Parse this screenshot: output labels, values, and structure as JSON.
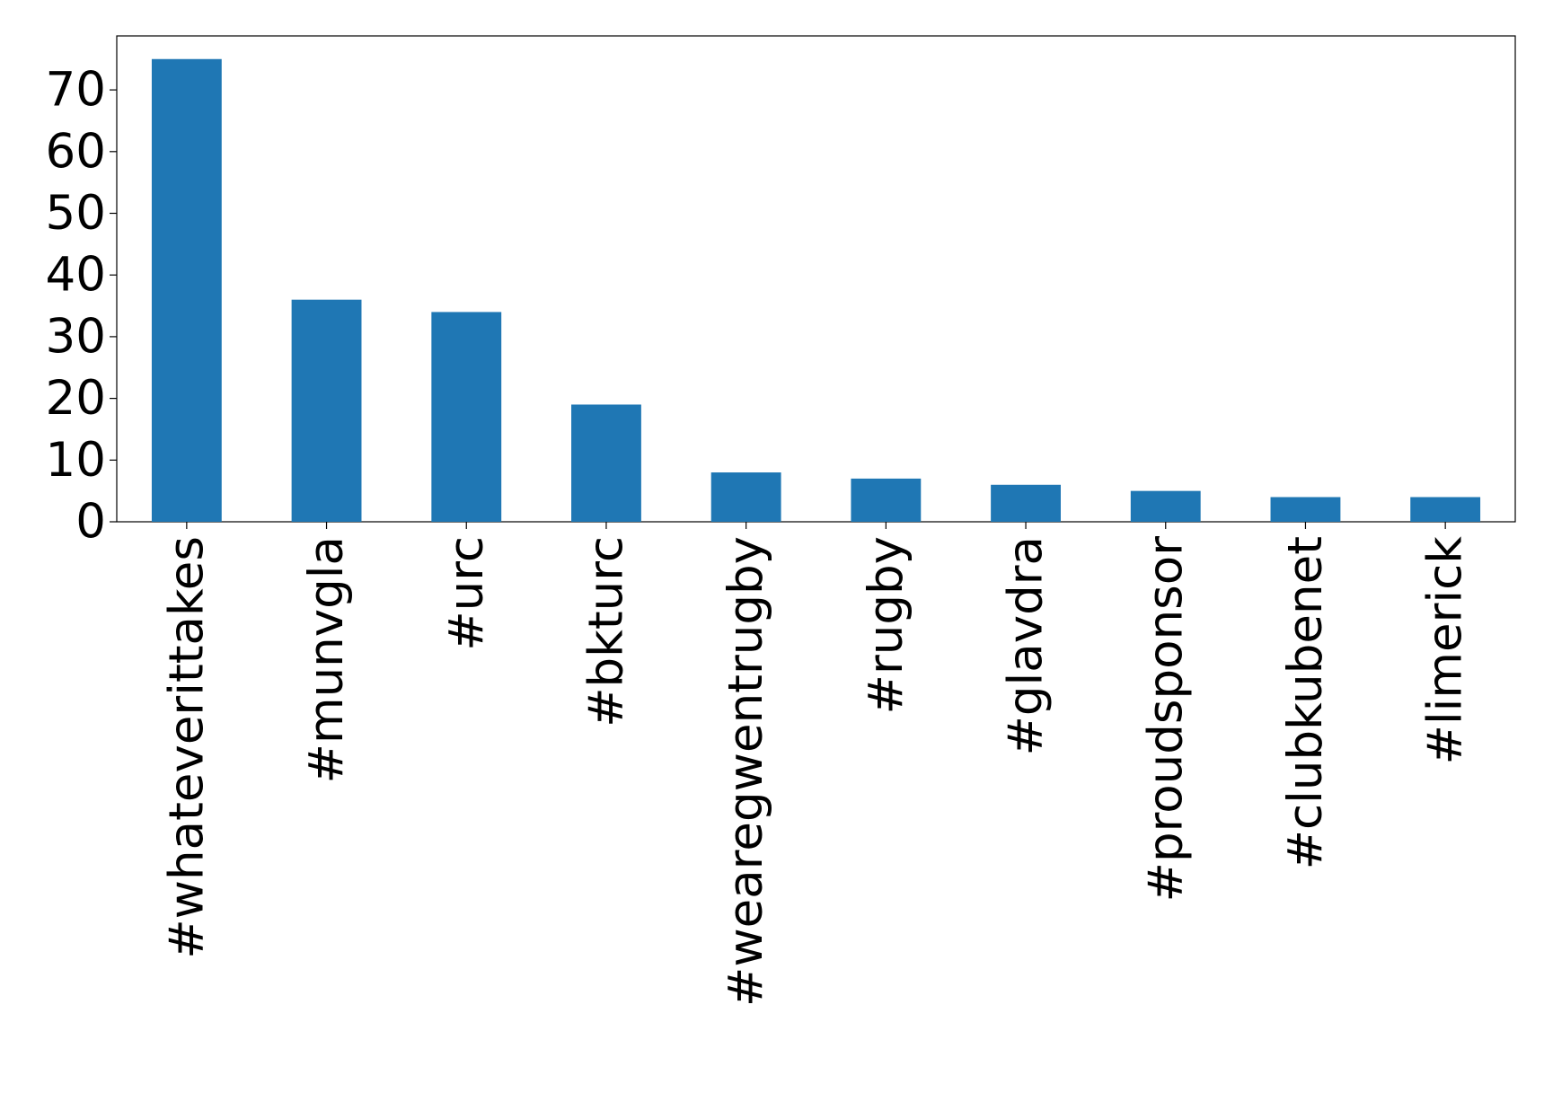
{
  "chart_data": {
    "type": "bar",
    "categories": [
      "#whateverittakes",
      "#munvgla",
      "#urc",
      "#bkturc",
      "#wearegwentrugby",
      "#rugby",
      "#glavdra",
      "#proudsponsor",
      "#clubkubenet",
      "#limerick"
    ],
    "values": [
      75,
      36,
      34,
      19,
      8,
      7,
      6,
      5,
      4,
      4
    ],
    "color": "#1f77b4",
    "ylim": [
      0,
      78.75
    ],
    "yticks": [
      0,
      10,
      20,
      30,
      40,
      50,
      60,
      70
    ],
    "grid": false
  }
}
